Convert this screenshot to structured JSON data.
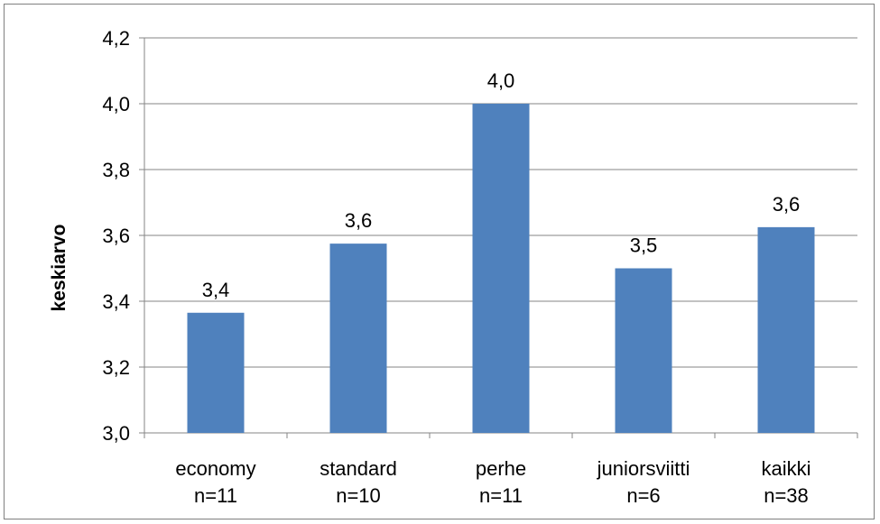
{
  "chart_data": {
    "type": "bar",
    "title": "",
    "xlabel": "",
    "ylabel": "keskiarvo",
    "ylim": [
      3.0,
      4.2
    ],
    "yticks": [
      "3,0",
      "3,2",
      "3,4",
      "3,6",
      "3,8",
      "4,0",
      "4,2"
    ],
    "ytick_values": [
      3.0,
      3.2,
      3.4,
      3.6,
      3.8,
      4.0,
      4.2
    ],
    "categories": [
      {
        "name": "economy",
        "n": "n=11"
      },
      {
        "name": "standard",
        "n": "n=10"
      },
      {
        "name": "perhe",
        "n": "n=11"
      },
      {
        "name": "juniorsviitti",
        "n": "n=6"
      },
      {
        "name": "kaikki",
        "n": "n=38"
      }
    ],
    "values": [
      3.365,
      3.575,
      4.0,
      3.5,
      3.625
    ],
    "data_labels": [
      "3,4",
      "3,6",
      "4,0",
      "3,5",
      "3,6"
    ],
    "bar_color": "#4f81bd",
    "gridlines": true,
    "legend": "none"
  }
}
